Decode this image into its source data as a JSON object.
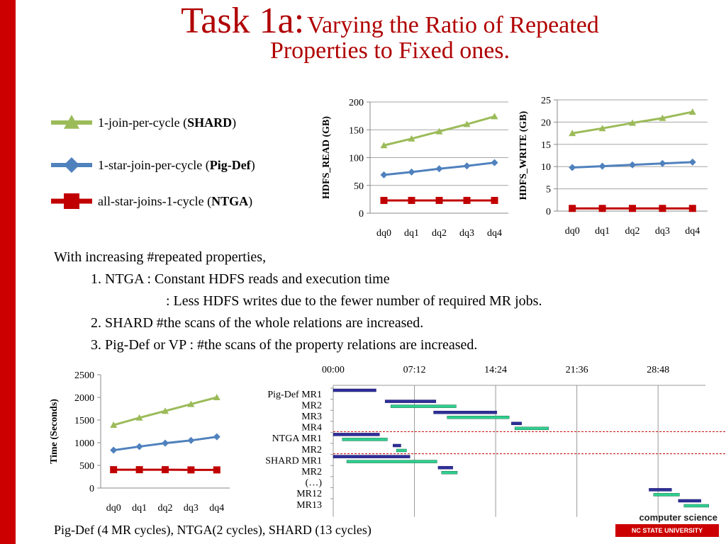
{
  "title": {
    "main": "Task 1a:",
    "sub": "Varying the Ratio of Repeated",
    "line2": "Properties to Fixed ones."
  },
  "legend": [
    {
      "prefix": "1-join-per-cycle (",
      "bold": "SHARD",
      "suffix": ")",
      "color": "#9bbb59",
      "marker": "triangle"
    },
    {
      "prefix": "1-star-join-per-cycle (",
      "bold": "Pig-Def",
      "suffix": ")",
      "color": "#4f81bd",
      "marker": "diamond"
    },
    {
      "prefix": "all-star-joins-1-cycle (",
      "bold": "NTGA",
      "suffix": ")",
      "color": "#c00000",
      "marker": "square"
    }
  ],
  "notes": [
    "With increasing #repeated properties,",
    "1. NTGA  : Constant HDFS reads and execution time",
    ": Less HDFS writes due to the fewer number of required MR jobs.",
    "2. SHARD  #the scans of the whole relations are increased.",
    "3. Pig-Def or VP : #the scans of the property relations are increased."
  ],
  "footer": "Pig-Def (4 MR cycles),  NTGA(2 cycles), SHARD (13 cycles)",
  "logo_text": "NC STATE UNIVERSITY",
  "cs_text": "computer science",
  "chart_data": [
    {
      "type": "line",
      "ylabel": "HDFS_READ (GB)",
      "categories": [
        "dq0",
        "dq1",
        "dq2",
        "dq3",
        "dq4"
      ],
      "ylim": [
        0,
        200
      ],
      "yticks": [
        0,
        50,
        100,
        150,
        200
      ],
      "grid": true,
      "series": [
        {
          "name": "SHARD",
          "color": "#9bbb59",
          "marker": "triangle",
          "values": [
            122,
            134,
            147,
            160,
            174
          ]
        },
        {
          "name": "Pig-Def",
          "color": "#4f81bd",
          "marker": "diamond",
          "values": [
            69,
            74,
            80,
            85,
            91
          ]
        },
        {
          "name": "NTGA",
          "color": "#c00000",
          "marker": "square",
          "values": [
            23,
            23,
            23,
            23,
            23
          ]
        }
      ]
    },
    {
      "type": "line",
      "ylabel": "HDFS_WRITE (GB)",
      "categories": [
        "dq0",
        "dq1",
        "dq2",
        "dq3",
        "dq4"
      ],
      "ylim": [
        0,
        25
      ],
      "yticks": [
        0,
        5,
        10,
        15,
        20,
        25
      ],
      "grid": true,
      "series": [
        {
          "name": "SHARD",
          "color": "#9bbb59",
          "marker": "triangle",
          "values": [
            17.5,
            18.6,
            19.8,
            20.9,
            22.3
          ]
        },
        {
          "name": "Pig-Def",
          "color": "#4f81bd",
          "marker": "diamond",
          "values": [
            9.8,
            10.1,
            10.4,
            10.7,
            11.0
          ]
        },
        {
          "name": "NTGA",
          "color": "#c00000",
          "marker": "square",
          "values": [
            0.6,
            0.6,
            0.6,
            0.6,
            0.6
          ]
        }
      ]
    },
    {
      "type": "line",
      "ylabel": "Time (Seconds)",
      "categories": [
        "dq0",
        "dq1",
        "dq2",
        "dq3",
        "dq4"
      ],
      "ylim": [
        0,
        2500
      ],
      "yticks": [
        0,
        500,
        1000,
        1500,
        2000,
        2500
      ],
      "grid": false,
      "series": [
        {
          "name": "SHARD",
          "color": "#9bbb59",
          "marker": "triangle",
          "values": [
            1390,
            1550,
            1700,
            1850,
            2000
          ]
        },
        {
          "name": "Pig-Def",
          "color": "#4f81bd",
          "marker": "diamond",
          "values": [
            835,
            915,
            990,
            1050,
            1130
          ]
        },
        {
          "name": "NTGA",
          "color": "#c00000",
          "marker": "square",
          "values": [
            405,
            405,
            405,
            400,
            400
          ]
        }
      ]
    },
    {
      "type": "gantt",
      "time_ticks": [
        "00:00",
        "07:12",
        "14:24",
        "21:36",
        "28:48"
      ],
      "tick_minutes": [
        0,
        7.2,
        14.4,
        21.6,
        28.8
      ],
      "xlim_minutes": [
        0,
        33
      ],
      "row_labels": [
        "Pig-Def MR1",
        "MR2",
        "MR3",
        "MR4",
        "NTGA MR1",
        "MR2",
        "SHARD MR1",
        "MR2",
        "(…)",
        "MR12",
        "MR13"
      ],
      "separators_after_row": [
        3,
        5
      ],
      "bars": [
        {
          "row": 0,
          "map": [
            0.0,
            3.8
          ]
        },
        {
          "row": 1,
          "map": [
            4.6,
            9.1
          ],
          "reduce": [
            5.1,
            10.9
          ]
        },
        {
          "row": 2,
          "map": [
            8.9,
            14.5
          ],
          "reduce": [
            10.1,
            15.6
          ]
        },
        {
          "row": 3,
          "map": [
            15.8,
            16.7
          ],
          "reduce": [
            16.1,
            19.1
          ]
        },
        {
          "row": 4,
          "map": [
            0.0,
            4.1
          ],
          "reduce": [
            0.8,
            4.8
          ]
        },
        {
          "row": 5,
          "map": [
            5.3,
            6.0
          ],
          "reduce": [
            5.6,
            6.5
          ]
        },
        {
          "row": 6,
          "map": [
            0.0,
            6.8
          ],
          "reduce": [
            1.2,
            9.2
          ]
        },
        {
          "row": 7,
          "map": [
            9.3,
            10.6
          ],
          "reduce": [
            9.6,
            11.0
          ]
        },
        {
          "row": 9,
          "map": [
            28.0,
            30.0
          ],
          "reduce": [
            28.4,
            30.7
          ]
        },
        {
          "row": 10,
          "map": [
            30.6,
            32.6
          ],
          "reduce": [
            31.1,
            33.3
          ]
        }
      ]
    }
  ]
}
